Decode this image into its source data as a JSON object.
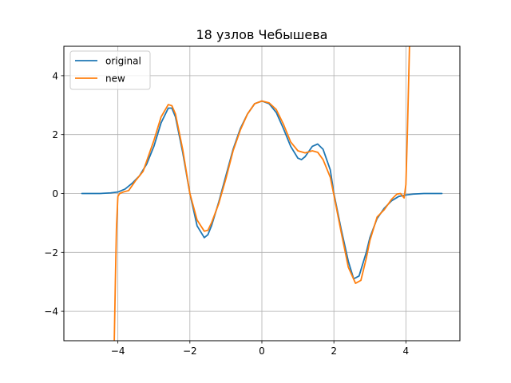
{
  "chart_data": {
    "type": "line",
    "title": "18 узлов Чебышева",
    "xlabel": "",
    "ylabel": "",
    "xlim": [
      -5.5,
      5.5
    ],
    "ylim": [
      -5,
      5
    ],
    "xticks": [
      -4,
      -2,
      0,
      2,
      4
    ],
    "yticks": [
      -4,
      -2,
      0,
      2,
      4
    ],
    "xtick_labels": [
      "−4",
      "−2",
      "0",
      "2",
      "4"
    ],
    "ytick_labels": [
      "−4",
      "−2",
      "0",
      "2",
      "4"
    ],
    "grid": true,
    "legend": {
      "placement": "upper-left",
      "entries": [
        "original",
        "new"
      ]
    },
    "series": [
      {
        "name": "original",
        "color": "#1f77b4",
        "points": [
          [
            -5.0,
            0.0
          ],
          [
            -4.5,
            0.0
          ],
          [
            -4.2,
            0.02
          ],
          [
            -4.0,
            0.05
          ],
          [
            -3.8,
            0.15
          ],
          [
            -3.6,
            0.35
          ],
          [
            -3.4,
            0.6
          ],
          [
            -3.2,
            1.0
          ],
          [
            -3.0,
            1.6
          ],
          [
            -2.8,
            2.4
          ],
          [
            -2.6,
            2.9
          ],
          [
            -2.5,
            2.9
          ],
          [
            -2.4,
            2.6
          ],
          [
            -2.2,
            1.4
          ],
          [
            -2.0,
            0.0
          ],
          [
            -1.8,
            -1.1
          ],
          [
            -1.6,
            -1.5
          ],
          [
            -1.5,
            -1.4
          ],
          [
            -1.4,
            -1.1
          ],
          [
            -1.2,
            -0.3
          ],
          [
            -1.0,
            0.6
          ],
          [
            -0.8,
            1.5
          ],
          [
            -0.6,
            2.2
          ],
          [
            -0.4,
            2.7
          ],
          [
            -0.2,
            3.05
          ],
          [
            0.0,
            3.14
          ],
          [
            0.2,
            3.05
          ],
          [
            0.4,
            2.75
          ],
          [
            0.6,
            2.2
          ],
          [
            0.8,
            1.6
          ],
          [
            1.0,
            1.2
          ],
          [
            1.1,
            1.15
          ],
          [
            1.2,
            1.25
          ],
          [
            1.4,
            1.6
          ],
          [
            1.55,
            1.68
          ],
          [
            1.7,
            1.5
          ],
          [
            1.9,
            0.8
          ],
          [
            2.0,
            0.0
          ],
          [
            2.2,
            -1.2
          ],
          [
            2.4,
            -2.3
          ],
          [
            2.55,
            -2.9
          ],
          [
            2.7,
            -2.8
          ],
          [
            2.9,
            -2.0
          ],
          [
            3.0,
            -1.5
          ],
          [
            3.2,
            -0.85
          ],
          [
            3.4,
            -0.5
          ],
          [
            3.6,
            -0.25
          ],
          [
            3.8,
            -0.1
          ],
          [
            4.0,
            -0.05
          ],
          [
            4.2,
            -0.02
          ],
          [
            4.5,
            0.0
          ],
          [
            5.0,
            0.0
          ]
        ]
      },
      {
        "name": "new",
        "color": "#ff7f0e",
        "points": [
          [
            -4.1,
            -5.0
          ],
          [
            -4.07,
            -3.0
          ],
          [
            -4.04,
            -1.2
          ],
          [
            -4.0,
            -0.1
          ],
          [
            -3.95,
            0.0
          ],
          [
            -3.85,
            0.05
          ],
          [
            -3.7,
            0.1
          ],
          [
            -3.5,
            0.45
          ],
          [
            -3.3,
            0.75
          ],
          [
            -3.2,
            1.1
          ],
          [
            -3.0,
            1.8
          ],
          [
            -2.8,
            2.6
          ],
          [
            -2.6,
            3.02
          ],
          [
            -2.5,
            2.98
          ],
          [
            -2.4,
            2.7
          ],
          [
            -2.2,
            1.5
          ],
          [
            -2.0,
            0.0
          ],
          [
            -1.8,
            -0.9
          ],
          [
            -1.6,
            -1.28
          ],
          [
            -1.5,
            -1.25
          ],
          [
            -1.4,
            -1.0
          ],
          [
            -1.2,
            -0.35
          ],
          [
            -1.0,
            0.5
          ],
          [
            -0.8,
            1.45
          ],
          [
            -0.6,
            2.15
          ],
          [
            -0.4,
            2.7
          ],
          [
            -0.2,
            3.05
          ],
          [
            0.0,
            3.14
          ],
          [
            0.2,
            3.08
          ],
          [
            0.4,
            2.85
          ],
          [
            0.6,
            2.35
          ],
          [
            0.8,
            1.75
          ],
          [
            1.0,
            1.45
          ],
          [
            1.2,
            1.38
          ],
          [
            1.4,
            1.45
          ],
          [
            1.55,
            1.4
          ],
          [
            1.7,
            1.15
          ],
          [
            1.9,
            0.55
          ],
          [
            2.0,
            -0.05
          ],
          [
            2.2,
            -1.3
          ],
          [
            2.4,
            -2.5
          ],
          [
            2.6,
            -3.05
          ],
          [
            2.75,
            -2.95
          ],
          [
            2.9,
            -2.2
          ],
          [
            3.0,
            -1.6
          ],
          [
            3.2,
            -0.8
          ],
          [
            3.4,
            -0.55
          ],
          [
            3.6,
            -0.2
          ],
          [
            3.75,
            -0.02
          ],
          [
            3.85,
            0.0
          ],
          [
            3.95,
            -0.15
          ],
          [
            4.0,
            0.3
          ],
          [
            4.04,
            2.0
          ],
          [
            4.08,
            4.0
          ],
          [
            4.1,
            5.0
          ]
        ]
      }
    ]
  }
}
